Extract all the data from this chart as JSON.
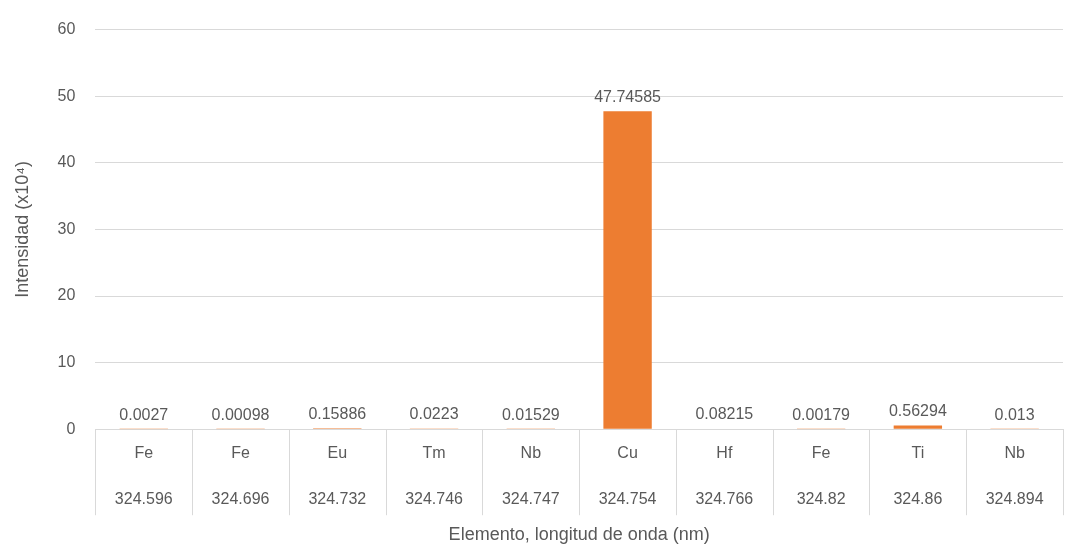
{
  "chart_data": {
    "type": "bar",
    "ylabel": "Intensidad (x10⁴)",
    "xlabel": "Elemento, longitud de onda (nm)",
    "categories": [
      "Fe\n324.596",
      "Fe\n324.696",
      "Eu\n324.732",
      "Tm\n324.746",
      "Nb\n324.747",
      "Cu\n324.754",
      "Hf\n324.766",
      "Fe\n324.82",
      "Ti\n324.86",
      "Nb\n324.894"
    ],
    "values": [
      0.0027,
      0.00098,
      0.15886,
      0.0223,
      0.01529,
      47.74585,
      0.08215,
      0.00179,
      0.56294,
      0.013
    ],
    "color": "#ed7d31",
    "ylim": [
      0,
      60
    ],
    "yticks": [
      0,
      10,
      20,
      30,
      40,
      50,
      60
    ],
    "grid": "y",
    "legend": false,
    "data_labels": true
  }
}
